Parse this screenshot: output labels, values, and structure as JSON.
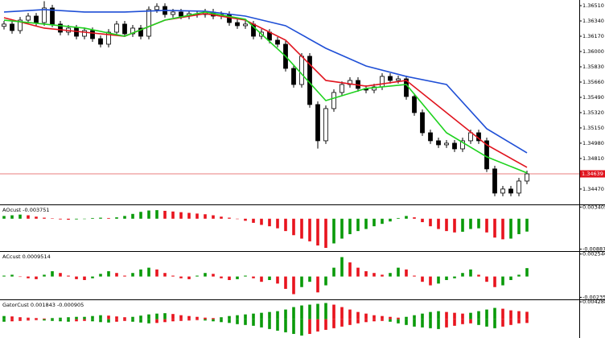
{
  "chart_data": [
    {
      "type": "candlestick",
      "open": [
        1.3628,
        1.36305,
        1.36233,
        1.36349,
        1.36394,
        1.36322,
        1.36484,
        1.36305,
        1.36215,
        1.3626,
        1.3617,
        1.36233,
        1.36143,
        1.36081,
        1.36215,
        1.36305,
        1.36197,
        1.3626,
        1.3617,
        1.36466,
        1.36501,
        1.36412,
        1.36439,
        1.36394,
        1.36421,
        1.36412,
        1.36439,
        1.36394,
        1.36412,
        1.36322,
        1.36287,
        1.36305,
        1.3617,
        1.36215,
        1.36126,
        1.36081,
        1.35812,
        1.35633,
        1.35947,
        1.3541,
        1.35007,
        1.35365,
        1.35544,
        1.35633,
        1.35678,
        1.35589,
        1.35571,
        1.35606,
        1.35723,
        1.35678,
        1.35696,
        1.35499,
        1.3532,
        1.35096,
        1.35007,
        1.34962,
        1.3498,
        1.34917,
        1.35007,
        1.35096,
        1.35007,
        1.34694,
        1.34425,
        1.3447,
        1.34425,
        1.34559
      ],
      "high": [
        1.3634,
        1.3634,
        1.36384,
        1.36429,
        1.36429,
        1.3656,
        1.36519,
        1.3634,
        1.36295,
        1.36295,
        1.36268,
        1.36268,
        1.36178,
        1.3625,
        1.3634,
        1.3634,
        1.36295,
        1.36295,
        1.36501,
        1.36536,
        1.36536,
        1.36474,
        1.36474,
        1.36456,
        1.36456,
        1.36474,
        1.36474,
        1.36447,
        1.36447,
        1.36357,
        1.3634,
        1.3634,
        1.3625,
        1.3625,
        1.36161,
        1.36116,
        1.35847,
        1.35982,
        1.35982,
        1.35445,
        1.354,
        1.35579,
        1.35668,
        1.35713,
        1.35713,
        1.35624,
        1.35641,
        1.35758,
        1.35758,
        1.35731,
        1.35731,
        1.35534,
        1.35355,
        1.35131,
        1.35042,
        1.35015,
        1.35015,
        1.35042,
        1.35131,
        1.35131,
        1.35042,
        1.34729,
        1.34505,
        1.34505,
        1.34594,
        1.34674
      ],
      "low": [
        1.36245,
        1.36198,
        1.36198,
        1.36314,
        1.36287,
        1.36287,
        1.3627,
        1.3618,
        1.3618,
        1.36135,
        1.36135,
        1.36108,
        1.36046,
        1.36046,
        1.3618,
        1.36162,
        1.36162,
        1.36135,
        1.36135,
        1.36431,
        1.36377,
        1.36377,
        1.36359,
        1.36359,
        1.36377,
        1.36377,
        1.36359,
        1.36359,
        1.36287,
        1.36252,
        1.36252,
        1.36135,
        1.36135,
        1.36091,
        1.36046,
        1.35777,
        1.35598,
        1.35598,
        1.35375,
        1.3492,
        1.34972,
        1.3533,
        1.35509,
        1.35598,
        1.35554,
        1.35536,
        1.35536,
        1.35571,
        1.35643,
        1.35643,
        1.35464,
        1.35285,
        1.35061,
        1.34972,
        1.34927,
        1.34927,
        1.34882,
        1.34882,
        1.34972,
        1.34972,
        1.34659,
        1.3439,
        1.3439,
        1.3439,
        1.3439,
        1.34524
      ],
      "close": [
        1.36305,
        1.36233,
        1.36349,
        1.36394,
        1.36322,
        1.36484,
        1.36305,
        1.36215,
        1.3626,
        1.3617,
        1.36233,
        1.36143,
        1.36081,
        1.36215,
        1.36305,
        1.36197,
        1.3626,
        1.3617,
        1.36466,
        1.36501,
        1.36412,
        1.36439,
        1.36394,
        1.36421,
        1.36412,
        1.36439,
        1.36394,
        1.36412,
        1.36322,
        1.36287,
        1.36305,
        1.3617,
        1.36215,
        1.36126,
        1.36081,
        1.35812,
        1.35633,
        1.35947,
        1.3541,
        1.35007,
        1.35365,
        1.35544,
        1.35633,
        1.35678,
        1.35589,
        1.35571,
        1.35606,
        1.35723,
        1.35678,
        1.35696,
        1.35499,
        1.3532,
        1.35096,
        1.35007,
        1.34962,
        1.3498,
        1.34917,
        1.35007,
        1.35096,
        1.35007,
        1.34694,
        1.34425,
        1.3447,
        1.34425,
        1.34559,
        1.34639
      ],
      "lines": [
        {
          "color": "#1f4fd6",
          "x": [
            0,
            5,
            10,
            15,
            20,
            25,
            30,
            35,
            40,
            45,
            50,
            55,
            60,
            65
          ],
          "values": [
            1.36439,
            1.36466,
            1.36439,
            1.36439,
            1.36457,
            1.36448,
            1.36394,
            1.36287,
            1.36036,
            1.35839,
            1.35723,
            1.35633,
            1.35141,
            1.34873
          ]
        },
        {
          "color": "#e0141e",
          "x": [
            0,
            5,
            10,
            15,
            20,
            25,
            30,
            35,
            40,
            45,
            50,
            55,
            60,
            65
          ],
          "values": [
            1.36376,
            1.3626,
            1.36215,
            1.3617,
            1.36349,
            1.36421,
            1.36349,
            1.36126,
            1.35678,
            1.35615,
            1.35678,
            1.3532,
            1.34962,
            1.34711
          ]
        },
        {
          "color": "#1ed21e",
          "x": [
            0,
            5,
            10,
            15,
            20,
            25,
            30,
            35,
            40,
            45,
            50,
            55,
            60,
            65
          ],
          "values": [
            1.36349,
            1.36305,
            1.3626,
            1.3617,
            1.36349,
            1.36439,
            1.36358,
            1.35947,
            1.35454,
            1.35589,
            1.35633,
            1.35096,
            1.34828,
            1.34649
          ]
        }
      ],
      "bid": 1.34639,
      "ylim": [
        1.34308,
        1.36573
      ],
      "yticks": [
        {
          "value": 1.3651,
          "label": "1.36510"
        },
        {
          "value": 1.3634,
          "label": "1.36340"
        },
        {
          "value": 1.3617,
          "label": "1.36170"
        },
        {
          "value": 1.36,
          "label": "1.36000"
        },
        {
          "value": 1.3583,
          "label": "1.35830"
        },
        {
          "value": 1.3566,
          "label": "1.35660"
        },
        {
          "value": 1.3549,
          "label": "1.35490"
        },
        {
          "value": 1.3532,
          "label": "1.35320"
        },
        {
          "value": 1.3515,
          "label": "1.35150"
        },
        {
          "value": 1.3498,
          "label": "1.34980"
        },
        {
          "value": 1.3481,
          "label": "1.34810"
        },
        {
          "value": 1.3447,
          "label": "1.34470"
        }
      ],
      "up_color": "#ffffff",
      "down_color": "#000000"
    },
    {
      "type": "histogram",
      "title": "AOcust -0.003751",
      "values": [
        0.0008,
        0.001,
        0.0012,
        0.001,
        0.0006,
        0.0003,
        0.0001,
        -0.0002,
        -0.0003,
        -0.0002,
        0.0,
        0.0002,
        0.0003,
        0.0002,
        0.0004,
        0.0008,
        0.0014,
        0.002,
        0.0024,
        0.0025,
        0.0023,
        0.0021,
        0.0019,
        0.0017,
        0.0015,
        0.0013,
        0.001,
        0.0006,
        0.0003,
        0.0,
        -0.0006,
        -0.0012,
        -0.0018,
        -0.0022,
        -0.0028,
        -0.0036,
        -0.0048,
        -0.0058,
        -0.0066,
        -0.0078,
        -0.0085,
        -0.0072,
        -0.0058,
        -0.0045,
        -0.0036,
        -0.003,
        -0.0022,
        -0.0015,
        -0.0008,
        0.0002,
        0.0008,
        0.0004,
        -0.001,
        -0.0022,
        -0.003,
        -0.0036,
        -0.004,
        -0.0038,
        -0.003,
        -0.0028,
        -0.004,
        -0.0055,
        -0.006,
        -0.0058,
        -0.0045,
        -0.003751
      ],
      "ylim": [
        -0.0092,
        0.0037
      ],
      "yticks": [
        0.003405,
        -0.008877
      ],
      "up_color": "#0a9a0a",
      "down_color": "#e8141e"
    },
    {
      "type": "histogram",
      "title": "ACcust 0.0009514",
      "values": [
        0.0001,
        0.0002,
        0.0,
        -0.0002,
        -0.0003,
        0.0002,
        0.0006,
        0.0004,
        0.0001,
        -0.0003,
        -0.0004,
        -0.0002,
        0.0003,
        0.0006,
        0.0004,
        0.0001,
        0.0004,
        0.0008,
        0.001,
        0.0008,
        0.0004,
        0.0001,
        -0.0002,
        -0.0003,
        0.0001,
        0.0004,
        0.0003,
        -0.0002,
        -0.0004,
        -0.0003,
        0.0001,
        -0.0002,
        -0.0006,
        -0.0004,
        -0.0008,
        -0.0014,
        -0.002,
        -0.0012,
        -0.0006,
        -0.0018,
        -0.001,
        0.001,
        0.0022,
        0.0016,
        0.001,
        0.0006,
        0.0004,
        0.0002,
        0.0004,
        0.001,
        0.0008,
        0.0001,
        -0.0006,
        -0.001,
        -0.0008,
        -0.0004,
        -0.0002,
        0.0004,
        0.0008,
        0.0002,
        -0.0006,
        -0.0012,
        -0.001,
        -0.0004,
        0.0002,
        0.0009514
      ],
      "ylim": [
        -0.0025,
        0.0027
      ],
      "yticks": [
        0.0025465,
        -0.0023561
      ],
      "up_color": "#0a9a0a",
      "down_color": "#e8141e"
    },
    {
      "type": "gator",
      "title": "GatorCust 0.001843 -0.000905",
      "upper": [
        0.0008,
        0.0007,
        0.0005,
        0.0004,
        0.0003,
        0.0002,
        0.0003,
        0.0004,
        0.0005,
        0.0006,
        0.0006,
        0.0008,
        0.001,
        0.0009,
        0.0007,
        0.0005,
        0.0006,
        0.0009,
        0.0012,
        0.0014,
        0.0015,
        0.0013,
        0.001,
        0.0008,
        0.0006,
        0.0004,
        0.0003,
        0.0005,
        0.0008,
        0.001,
        0.0012,
        0.0014,
        0.0016,
        0.0018,
        0.002,
        0.0024,
        0.003,
        0.0034,
        0.0036,
        0.0038,
        0.004,
        0.0036,
        0.003,
        0.0024,
        0.0018,
        0.0014,
        0.001,
        0.0008,
        0.0006,
        0.0004,
        0.0006,
        0.001,
        0.0014,
        0.0018,
        0.002,
        0.0018,
        0.0016,
        0.0014,
        0.0016,
        0.002,
        0.0024,
        0.0028,
        0.0026,
        0.0022,
        0.002,
        0.001843
      ],
      "lower": [
        -0.0006,
        -0.0005,
        -0.0004,
        -0.0003,
        -0.0002,
        -0.0003,
        -0.0004,
        -0.0005,
        -0.0006,
        -0.0005,
        -0.0004,
        -0.0005,
        -0.0007,
        -0.0008,
        -0.0006,
        -0.0004,
        -0.0006,
        -0.0008,
        -0.001,
        -0.0009,
        -0.0007,
        -0.0005,
        -0.0004,
        -0.0003,
        -0.0002,
        -0.0003,
        -0.0005,
        -0.0007,
        -0.0009,
        -0.0012,
        -0.0014,
        -0.0016,
        -0.002,
        -0.0024,
        -0.0028,
        -0.0032,
        -0.0036,
        -0.004,
        -0.0036,
        -0.003,
        -0.0026,
        -0.0022,
        -0.0018,
        -0.0014,
        -0.001,
        -0.0007,
        -0.0005,
        -0.0004,
        -0.0006,
        -0.001,
        -0.0014,
        -0.0018,
        -0.002,
        -0.0022,
        -0.0024,
        -0.002,
        -0.0016,
        -0.0012,
        -0.001,
        -0.0014,
        -0.0018,
        -0.0022,
        -0.0018,
        -0.0014,
        -0.001,
        -0.000905
      ],
      "ylim": [
        -0.0046,
        0.0045
      ],
      "yticks": [
        0.004288
      ],
      "up_color": "#0a9a0a",
      "down_color": "#e8141e"
    }
  ]
}
